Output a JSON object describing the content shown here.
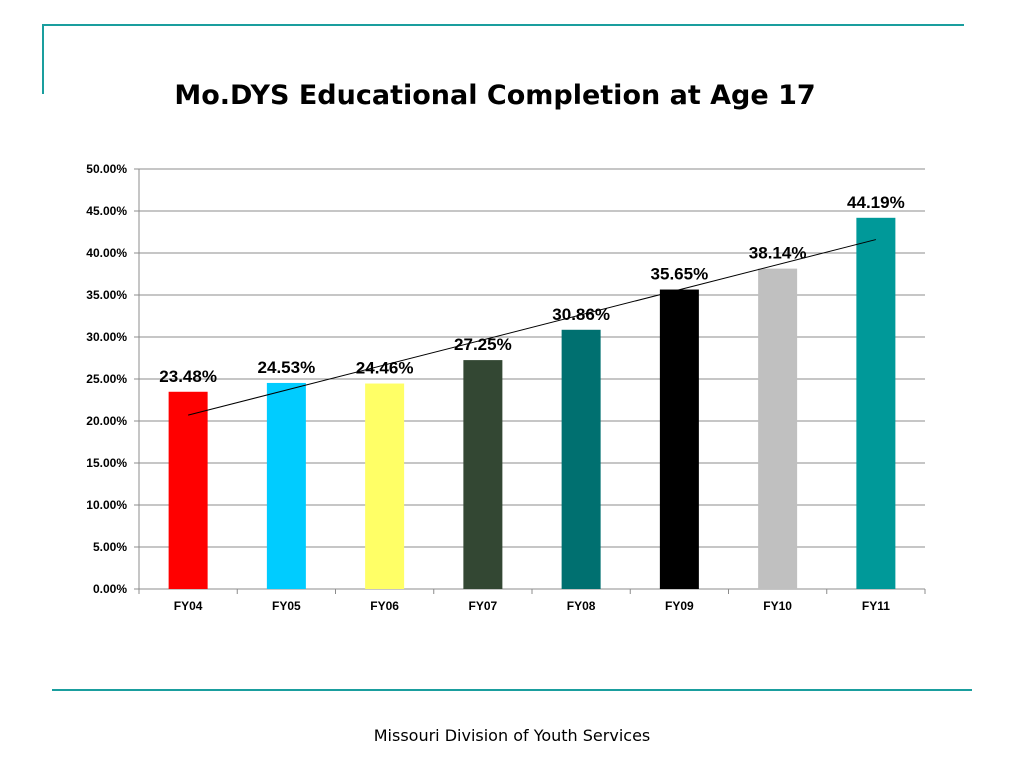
{
  "slide": {
    "title": "Mo.DYS Educational Completion at Age 17",
    "footer": "Missouri Division of Youth Services",
    "accent_color": "#1a9e9e"
  },
  "chart_data": {
    "type": "bar",
    "title": "Mo.DYS Educational Completion at Age 17",
    "xlabel": "",
    "ylabel": "",
    "categories": [
      "FY04",
      "FY05",
      "FY06",
      "FY07",
      "FY08",
      "FY09",
      "FY10",
      "FY11"
    ],
    "values": [
      23.48,
      24.53,
      24.46,
      27.25,
      30.86,
      35.65,
      38.14,
      44.19
    ],
    "data_labels": [
      "23.48%",
      "24.53%",
      "24.46%",
      "27.25%",
      "30.86%",
      "35.65%",
      "38.14%",
      "44.19%"
    ],
    "colors": [
      "#ff0000",
      "#00ccff",
      "#ffff66",
      "#334733",
      "#007070",
      "#000000",
      "#c0c0c0",
      "#009999"
    ],
    "ylim": [
      0,
      50
    ],
    "ytick_values": [
      0,
      5,
      10,
      15,
      20,
      25,
      30,
      35,
      40,
      45,
      50
    ],
    "ytick_labels": [
      "0.00%",
      "5.00%",
      "10.00%",
      "15.00%",
      "20.00%",
      "25.00%",
      "30.00%",
      "35.00%",
      "40.00%",
      "45.00%",
      "50.00%"
    ],
    "grid": true,
    "legend": "none",
    "trendline": {
      "type": "linear",
      "start": 20.7,
      "end": 41.6
    }
  }
}
